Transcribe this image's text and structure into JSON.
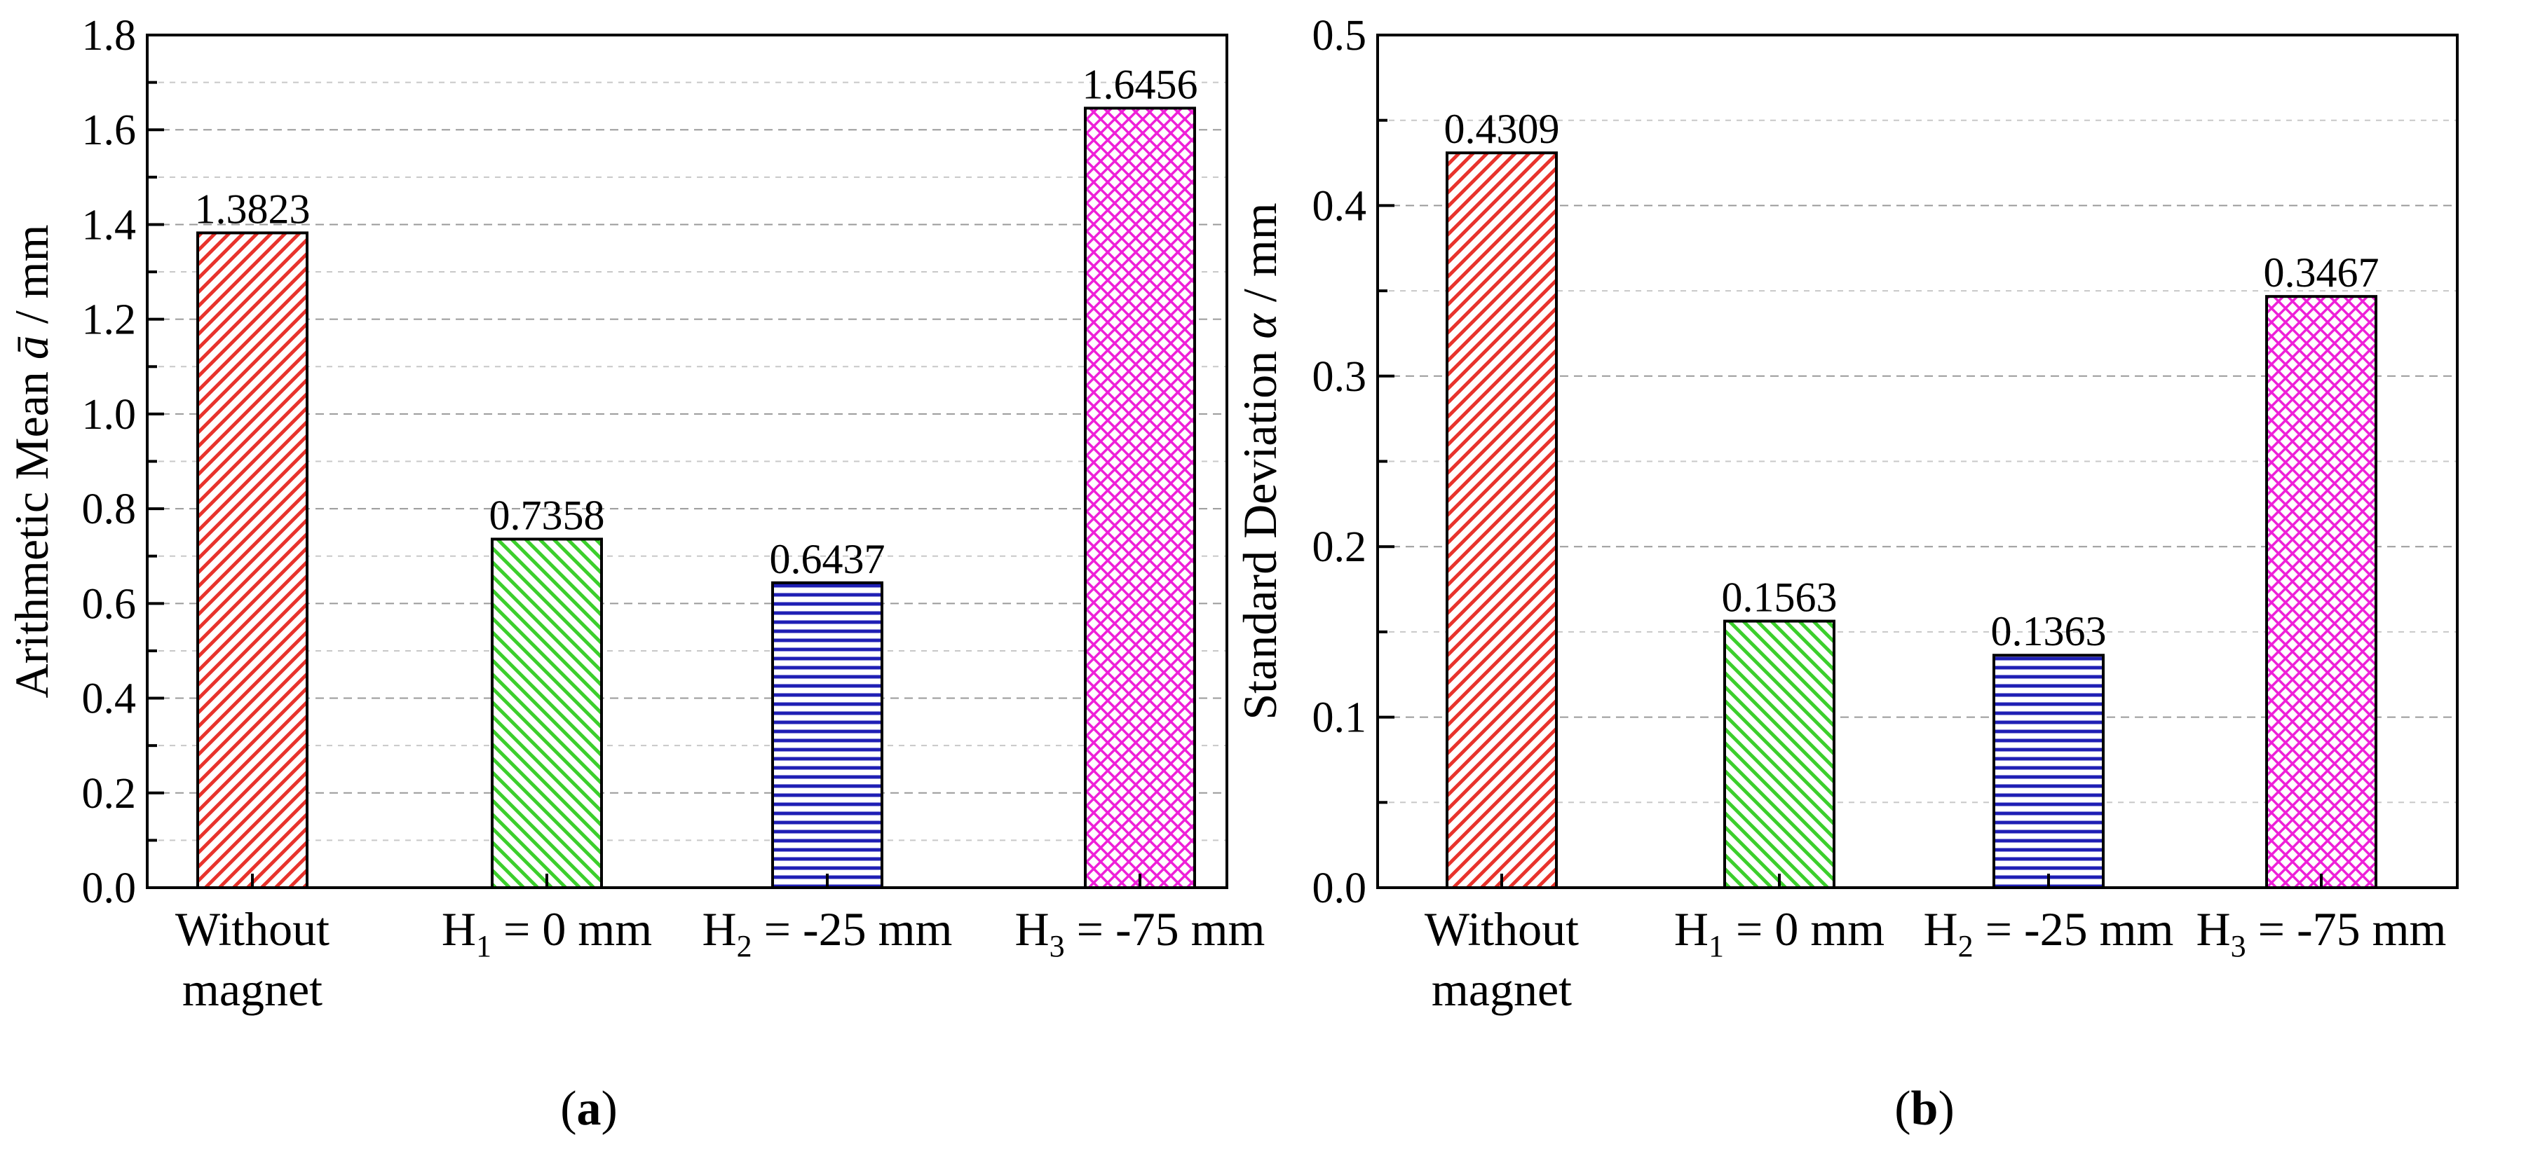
{
  "chart_data": [
    {
      "type": "bar",
      "panel": "(a)",
      "panel_letter": "a",
      "ylabel_prefix": "Arithmetic Mean ",
      "ylabel_symbol": "ā",
      "ylabel_suffix": " / mm",
      "xlabel": "",
      "ylim": [
        0,
        1.8
      ],
      "ytick_step": 0.2,
      "ytick_labels": [
        "0.0",
        "0.2",
        "0.4",
        "0.6",
        "0.8",
        "1.0",
        "1.2",
        "1.4",
        "1.6",
        "1.8"
      ],
      "grid": true,
      "categories": [
        {
          "main": "Without",
          "sub": "",
          "rest": "",
          "line2": "magnet"
        },
        {
          "main": "H",
          "sub": "1",
          "rest": " = 0 mm",
          "line2": ""
        },
        {
          "main": "H",
          "sub": "2",
          "rest": " = -25 mm",
          "line2": ""
        },
        {
          "main": "H",
          "sub": "3",
          "rest": " = -75 mm",
          "line2": ""
        }
      ],
      "values": [
        1.3823,
        0.7358,
        0.6437,
        1.6456
      ],
      "value_labels": [
        "1.3823",
        "0.7358",
        "0.6437",
        "1.6456"
      ]
    },
    {
      "type": "bar",
      "panel": "(b)",
      "panel_letter": "b",
      "ylabel_prefix": "Standard Deviation ",
      "ylabel_symbol": "α",
      "ylabel_suffix": " / mm",
      "xlabel": "",
      "ylim": [
        0,
        0.5
      ],
      "ytick_step": 0.1,
      "ytick_labels": [
        "0.0",
        "0.1",
        "0.2",
        "0.3",
        "0.4",
        "0.5"
      ],
      "grid": true,
      "categories": [
        {
          "main": "Without",
          "sub": "",
          "rest": "",
          "line2": "magnet"
        },
        {
          "main": "H",
          "sub": "1",
          "rest": " = 0 mm",
          "line2": ""
        },
        {
          "main": "H",
          "sub": "2",
          "rest": " = -25 mm",
          "line2": ""
        },
        {
          "main": "H",
          "sub": "3",
          "rest": " = -75 mm",
          "line2": ""
        }
      ],
      "values": [
        0.4309,
        0.1563,
        0.1363,
        0.3467
      ],
      "value_labels": [
        "0.4309",
        "0.1563",
        "0.1363",
        "0.3467"
      ]
    }
  ],
  "series_colors": [
    "#e8332c",
    "#3ccf2c",
    "#1f1fb4",
    "#ee1fd8"
  ],
  "series_patterns": [
    "diag-back",
    "diag-fwd",
    "horizontal",
    "crosshatch"
  ]
}
